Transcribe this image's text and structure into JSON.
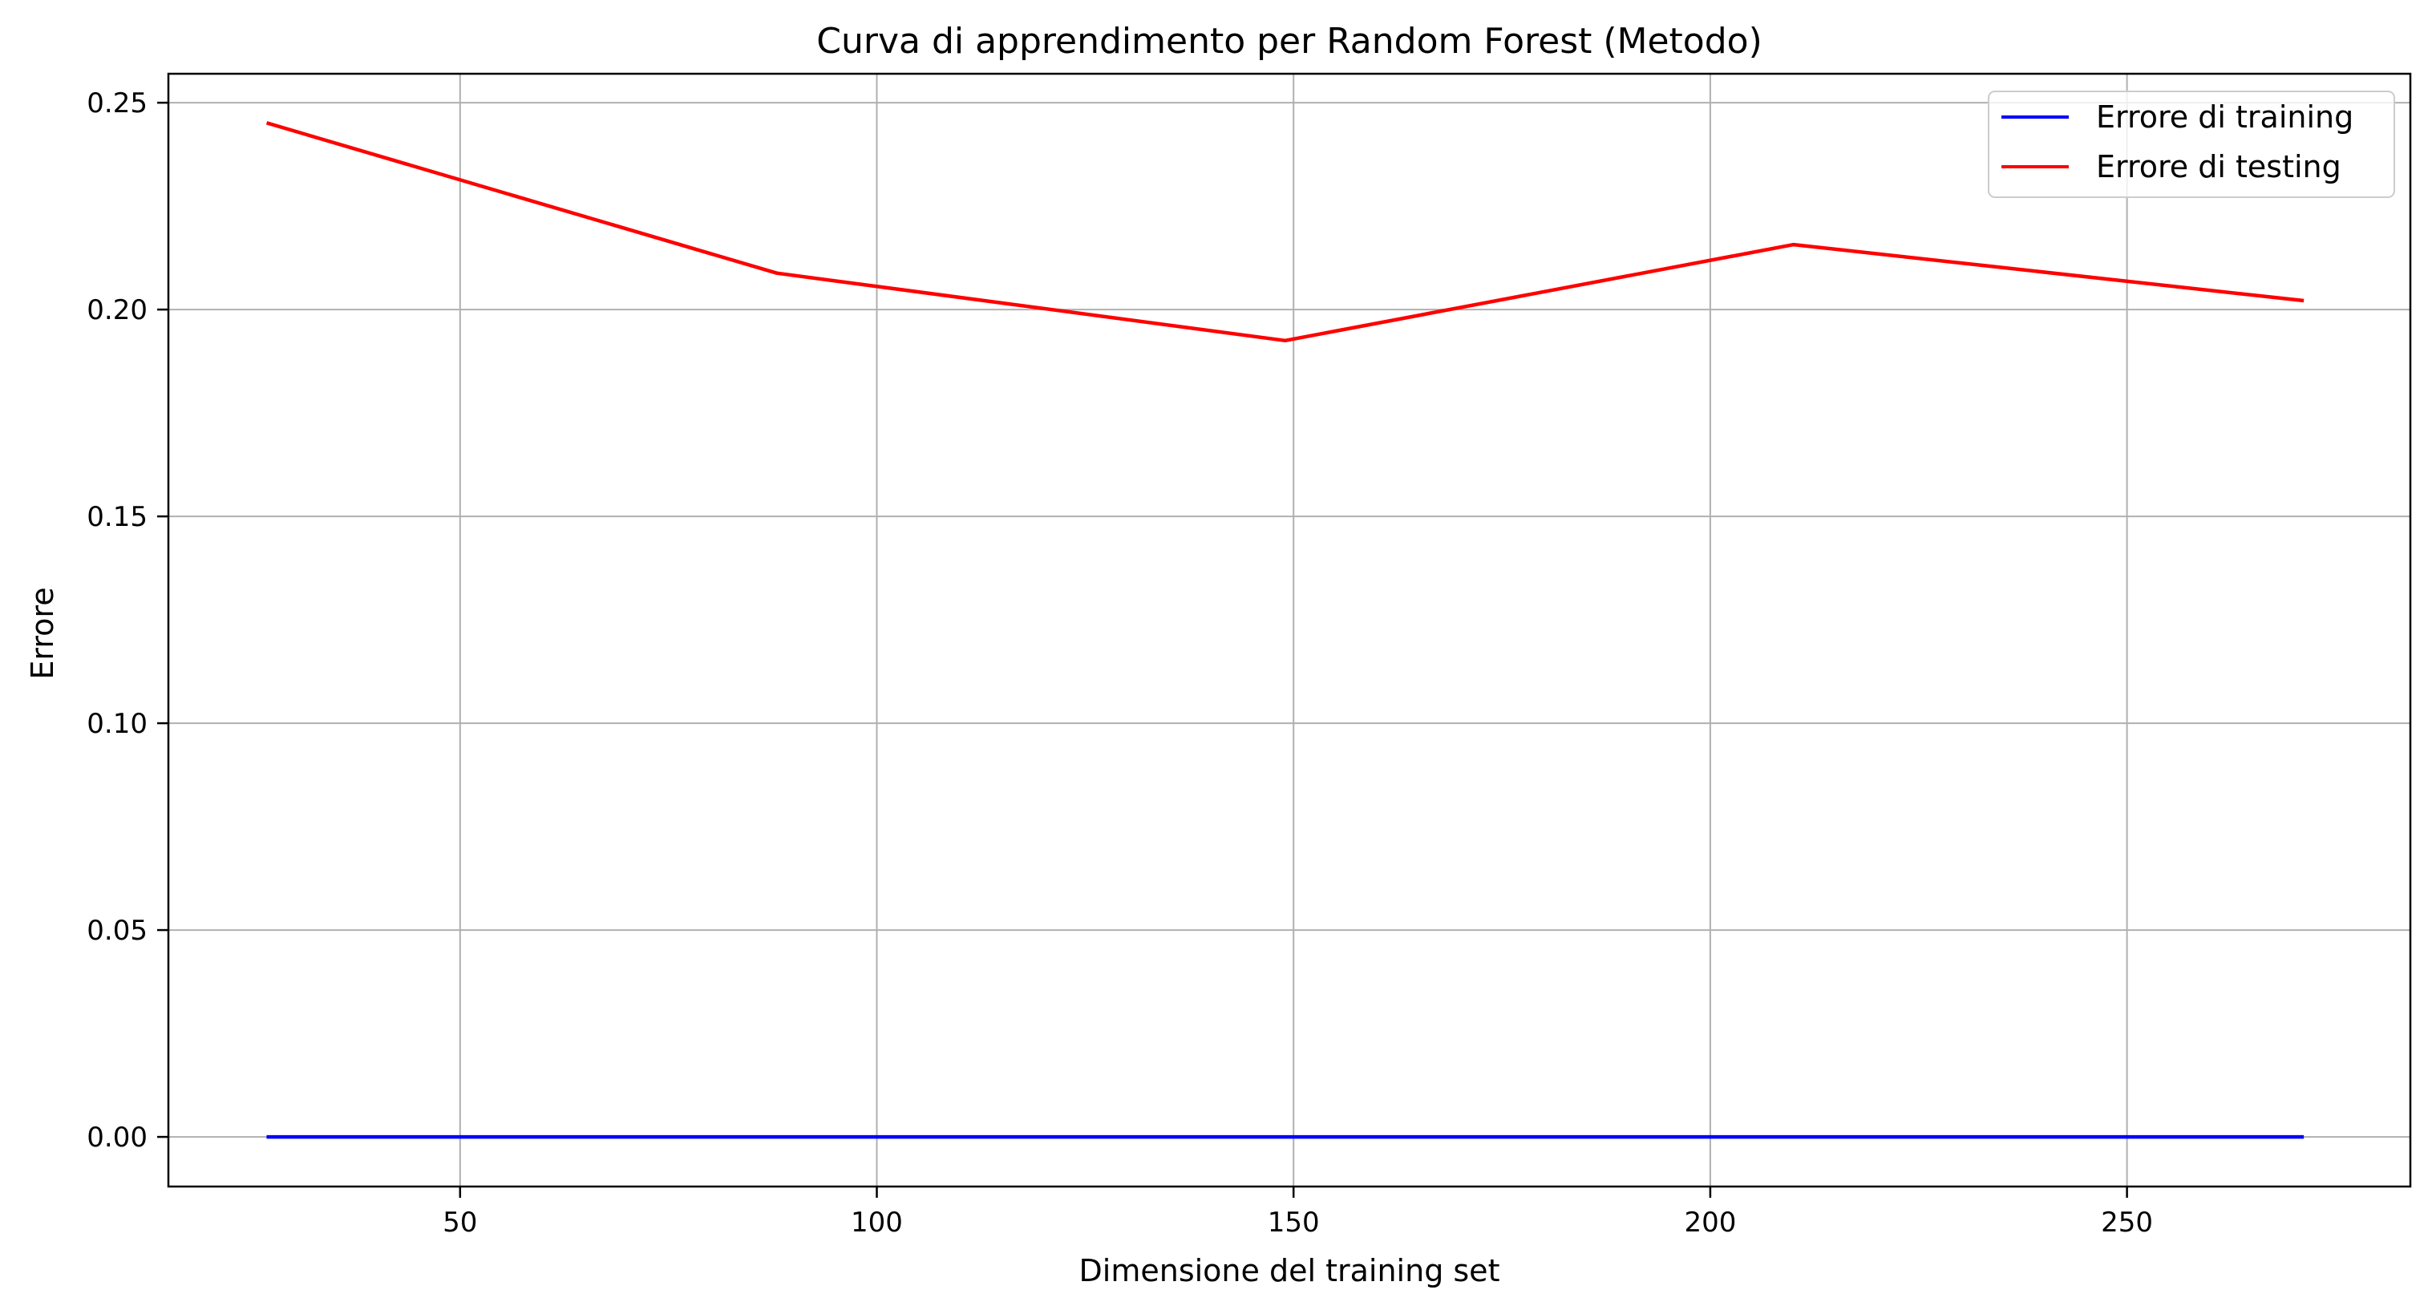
{
  "chart_data": {
    "type": "line",
    "title": "Curva di apprendimento per Random Forest (Metodo)",
    "xlabel": "Dimensione del training set",
    "ylabel": "Errore",
    "xlim": [
      15,
      284
    ],
    "ylim": [
      -0.012,
      0.257
    ],
    "xticks": [
      50,
      100,
      150,
      200,
      250
    ],
    "yticks": [
      0.0,
      0.05,
      0.1,
      0.15,
      0.2,
      0.25
    ],
    "xtick_labels": [
      "50",
      "100",
      "150",
      "200",
      "250"
    ],
    "ytick_labels": [
      "0.00",
      "0.05",
      "0.10",
      "0.15",
      "0.20",
      "0.25"
    ],
    "grid": true,
    "legend_position": "top-right",
    "x": [
      27,
      88,
      149,
      210,
      271
    ],
    "series": [
      {
        "name": "Errore di training",
        "color": "#0000ff",
        "values": [
          0.0,
          0.0,
          0.0,
          0.0,
          0.0
        ]
      },
      {
        "name": "Errore di testing",
        "color": "#ff0000",
        "values": [
          0.245,
          0.2088,
          0.1925,
          0.2157,
          0.2022
        ]
      }
    ]
  }
}
